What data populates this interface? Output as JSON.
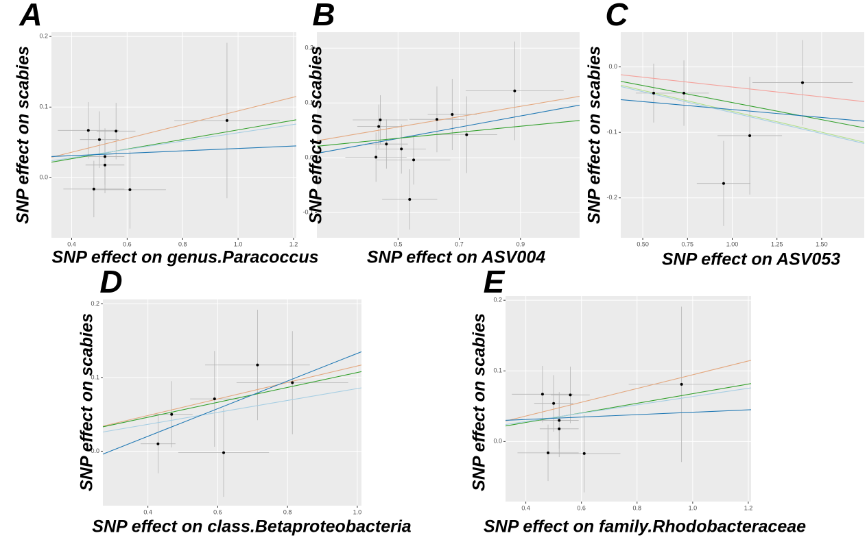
{
  "chart_data": [
    {
      "type": "scatter",
      "panel_label": "A",
      "x_label": "SNP effect on genus.Paracoccus",
      "y_label": "SNP effect on scabies",
      "x": [
        0.46,
        0.5,
        0.52,
        0.52,
        0.56,
        0.48,
        0.61,
        0.96
      ],
      "values": [
        0.067,
        0.054,
        0.03,
        0.018,
        0.066,
        -0.016,
        -0.017,
        0.081
      ],
      "x_err": [
        0.11,
        0.07,
        0.07,
        0.07,
        0.07,
        0.11,
        0.13,
        0.19
      ],
      "y_err": [
        0.04,
        0.04,
        0.04,
        0.04,
        0.04,
        0.04,
        0.055,
        0.11
      ],
      "point_color": "#000000",
      "lines": [
        {
          "color": "#E3A77E",
          "x": [
            0.327,
            1.21
          ],
          "values": [
            0.029,
            0.115
          ]
        },
        {
          "color": "#33A02C",
          "x": [
            0.327,
            1.21
          ],
          "values": [
            0.022,
            0.082
          ]
        },
        {
          "color": "#A6CEE3",
          "x": [
            0.327,
            1.21
          ],
          "values": [
            0.024,
            0.076
          ]
        },
        {
          "color": "#1F78B4",
          "x": [
            0.327,
            1.21
          ],
          "values": [
            0.03,
            0.045
          ]
        }
      ],
      "xlim": [
        0.327,
        1.21
      ],
      "ylim": [
        -0.085,
        0.206
      ],
      "xticks": [
        0.4,
        0.6,
        0.8,
        {
          "value": 1,
          "label": "1.0"
        },
        1.2
      ],
      "yticks": [
        {
          "value": 0,
          "label": "0.0"
        },
        0.1,
        0.2
      ],
      "grid": true
    },
    {
      "type": "scatter",
      "panel_label": "B",
      "x_label": "SNP effect on ASV004",
      "y_label": "SNP effect on scabies",
      "x": [
        0.428,
        0.437,
        0.442,
        0.462,
        0.511,
        0.538,
        0.551,
        0.627,
        0.677,
        0.724,
        0.881
      ],
      "values": [
        0.001,
        0.057,
        0.069,
        0.025,
        0.016,
        -0.076,
        -0.004,
        0.07,
        0.079,
        0.042,
        0.122
      ],
      "x_err": [
        0.1,
        0.07,
        0.09,
        0.07,
        0.08,
        0.09,
        0.12,
        0.09,
        0.08,
        0.1,
        0.16
      ],
      "y_err": [
        0.045,
        0.04,
        0.045,
        0.045,
        0.045,
        0.055,
        0.045,
        0.06,
        0.065,
        0.07,
        0.09
      ],
      "point_color": "#000000",
      "lines": [
        {
          "color": "#E3A77E",
          "x": [
            0.235,
            1.093
          ],
          "values": [
            0.031,
            0.112
          ]
        },
        {
          "color": "#1F78B4",
          "x": [
            0.235,
            1.093
          ],
          "values": [
            0.008,
            0.096
          ]
        },
        {
          "color": "#33A02C",
          "x": [
            0.235,
            1.093
          ],
          "values": [
            0.021,
            0.068
          ]
        }
      ],
      "xlim": [
        0.235,
        1.093
      ],
      "ylim": [
        -0.146,
        0.229
      ],
      "xticks": [
        0.5,
        0.7,
        0.9
      ],
      "yticks": [
        -0.1,
        {
          "value": 0,
          "label": "0.0"
        },
        0.1,
        0.2
      ],
      "grid": true
    },
    {
      "type": "scatter",
      "panel_label": "C",
      "x_label": "SNP effect on ASV053",
      "y_label": "SNP effect on scabies",
      "x": [
        0.561,
        0.73,
        1.098,
        0.952,
        1.393
      ],
      "values": [
        -0.04,
        -0.04,
        -0.105,
        -0.178,
        -0.024
      ],
      "x_err": [
        0.1,
        0.14,
        0.18,
        0.15,
        0.28
      ],
      "y_err": [
        0.045,
        0.05,
        0.09,
        0.065,
        0.065
      ],
      "point_color": "#000000",
      "lines": [
        {
          "color": "#F4A09A",
          "x": [
            0.377,
            1.738
          ],
          "values": [
            -0.012,
            -0.053
          ]
        },
        {
          "color": "#33A02C",
          "x": [
            0.377,
            1.738
          ],
          "values": [
            -0.022,
            -0.093
          ]
        },
        {
          "color": "#B2DF8A",
          "x": [
            0.377,
            1.738
          ],
          "values": [
            -0.028,
            -0.115
          ]
        },
        {
          "color": "#A6CEE3",
          "x": [
            0.377,
            1.738
          ],
          "values": [
            -0.03,
            -0.117
          ]
        },
        {
          "color": "#1F78B4",
          "x": [
            0.377,
            1.738
          ],
          "values": [
            -0.05,
            -0.083
          ]
        }
      ],
      "xlim": [
        0.377,
        1.738
      ],
      "ylim": [
        -0.261,
        0.053
      ],
      "xticks": [
        {
          "value": 0.5,
          "label": "0.50"
        },
        0.75,
        {
          "value": 1,
          "label": "1.00"
        },
        1.25,
        {
          "value": 1.5,
          "label": "1.50"
        }
      ],
      "yticks": [
        -0.2,
        -0.1,
        {
          "value": 0,
          "label": "0.0"
        }
      ],
      "grid": true
    },
    {
      "type": "scatter",
      "panel_label": "D",
      "x_label": "SNP effect on class.Betaproteobacteria",
      "y_label": "SNP effect on scabies",
      "x": [
        0.429,
        0.468,
        0.591,
        0.617,
        0.714,
        0.814
      ],
      "values": [
        0.01,
        0.05,
        0.071,
        -0.002,
        0.117,
        0.093
      ],
      "x_err": [
        0.05,
        0.06,
        0.07,
        0.13,
        0.15,
        0.16
      ],
      "y_err": [
        0.04,
        0.045,
        0.065,
        0.06,
        0.075,
        0.07
      ],
      "point_color": "#000000",
      "lines": [
        {
          "color": "#E3A77E",
          "x": [
            0.271,
            1.012
          ],
          "values": [
            0.034,
            0.117
          ]
        },
        {
          "color": "#33A02C",
          "x": [
            0.271,
            1.012
          ],
          "values": [
            0.033,
            0.108
          ]
        },
        {
          "color": "#A6CEE3",
          "x": [
            0.271,
            1.012
          ],
          "values": [
            0.026,
            0.086
          ]
        },
        {
          "color": "#1F78B4",
          "x": [
            0.271,
            1.012
          ],
          "values": [
            -0.004,
            0.135
          ]
        }
      ],
      "xlim": [
        0.271,
        1.012
      ],
      "ylim": [
        -0.074,
        0.206
      ],
      "xticks": [
        0.4,
        0.6,
        0.8,
        {
          "value": 1,
          "label": "1.0"
        }
      ],
      "yticks": [
        {
          "value": 0,
          "label": "0.0"
        },
        0.1,
        0.2
      ],
      "grid": true
    },
    {
      "type": "scatter",
      "panel_label": "E",
      "x_label": "SNP effect on family.Rhodobacteraceae",
      "y_label": "SNP effect on scabies",
      "x": [
        0.46,
        0.5,
        0.52,
        0.52,
        0.56,
        0.48,
        0.61,
        0.96
      ],
      "values": [
        0.067,
        0.054,
        0.03,
        0.018,
        0.066,
        -0.016,
        -0.017,
        0.081
      ],
      "x_err": [
        0.11,
        0.07,
        0.07,
        0.07,
        0.07,
        0.11,
        0.13,
        0.19
      ],
      "y_err": [
        0.04,
        0.04,
        0.04,
        0.04,
        0.04,
        0.04,
        0.055,
        0.11
      ],
      "point_color": "#000000",
      "lines": [
        {
          "color": "#E3A77E",
          "x": [
            0.327,
            1.21
          ],
          "values": [
            0.029,
            0.115
          ]
        },
        {
          "color": "#33A02C",
          "x": [
            0.327,
            1.21
          ],
          "values": [
            0.022,
            0.082
          ]
        },
        {
          "color": "#A6CEE3",
          "x": [
            0.327,
            1.21
          ],
          "values": [
            0.024,
            0.076
          ]
        },
        {
          "color": "#1F78B4",
          "x": [
            0.327,
            1.21
          ],
          "values": [
            0.03,
            0.045
          ]
        }
      ],
      "xlim": [
        0.327,
        1.21
      ],
      "ylim": [
        -0.085,
        0.206
      ],
      "xticks": [
        0.4,
        0.6,
        0.8,
        {
          "value": 1,
          "label": "1.0"
        },
        1.2
      ],
      "yticks": [
        {
          "value": 0,
          "label": "0.0"
        },
        0.1,
        0.2
      ],
      "grid": true
    }
  ]
}
